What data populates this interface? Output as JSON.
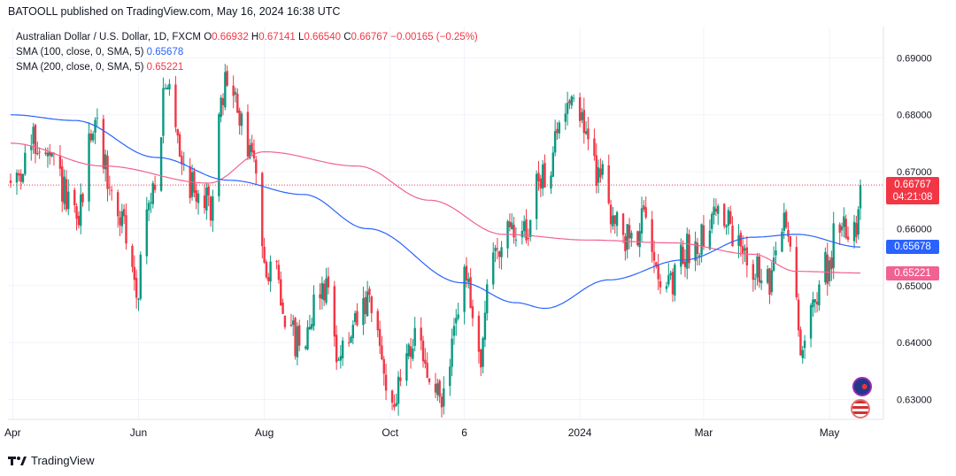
{
  "header": {
    "text": "BATOOLL published on TradingView.com, May 16, 2024 16:38 UTC"
  },
  "legend": {
    "title": "Australian Dollar / U.S. Dollar, 1D, FXCM",
    "o_label": "O",
    "o": "0.66932",
    "h_label": "H",
    "h": "0.67141",
    "l_label": "L",
    "l": "0.66540",
    "c_label": "C",
    "c": "0.66767",
    "change": "−0.00165 (−0.25%)",
    "sma100_label": "SMA (100, close, 0, SMA, 5)",
    "sma100_value": "0.65678",
    "sma200_label": "SMA (200, close, 0, SMA, 5)",
    "sma200_value": "0.65221"
  },
  "badges": {
    "price": "0.66767",
    "countdown": "04:21:08",
    "sma100": "0.65678",
    "sma200": "0.65221"
  },
  "colors": {
    "up": "#089981",
    "down": "#f23645",
    "sma100": "#2962ff",
    "sma200": "#f06292",
    "grid": "#f0f3fa"
  },
  "footer": {
    "brand": "TradingView"
  },
  "chart_data": {
    "type": "candlestick",
    "symbol": "AUDUSD",
    "interval": "1D",
    "y_ticks": [
      0.63,
      0.64,
      0.65,
      0.66,
      0.67,
      0.68,
      0.69
    ],
    "y_tick_labels": [
      "0.63000",
      "0.64000",
      "0.65000",
      "0.66000",
      "0.67000",
      "0.68000",
      "0.69000"
    ],
    "ylim": [
      0.6265,
      0.6955
    ],
    "x_tick_labels": [
      "Apr",
      "Jun",
      "Aug",
      "Oct",
      "6",
      "2024",
      "Mar",
      "May"
    ],
    "x_tick_dates": [
      "2023-04-01",
      "2023-06-01",
      "2023-08-01",
      "2023-10-01",
      "2023-11-06",
      "2024-01-01",
      "2024-03-01",
      "2024-05-01"
    ],
    "date_range": [
      "2023-03-31",
      "2024-05-16"
    ],
    "last_price": 0.66767,
    "price_anchors": [
      {
        "date": "2023-03-31",
        "price": 0.668
      },
      {
        "date": "2023-04-12",
        "price": 0.675
      },
      {
        "date": "2023-04-20",
        "price": 0.671
      },
      {
        "date": "2023-05-02",
        "price": 0.661
      },
      {
        "date": "2023-05-10",
        "price": 0.678
      },
      {
        "date": "2023-05-23",
        "price": 0.662
      },
      {
        "date": "2023-05-31",
        "price": 0.65
      },
      {
        "date": "2023-06-06",
        "price": 0.664
      },
      {
        "date": "2023-06-15",
        "price": 0.684
      },
      {
        "date": "2023-06-26",
        "price": 0.668
      },
      {
        "date": "2023-07-05",
        "price": 0.664
      },
      {
        "date": "2023-07-14",
        "price": 0.686
      },
      {
        "date": "2023-07-24",
        "price": 0.675
      },
      {
        "date": "2023-08-03",
        "price": 0.654
      },
      {
        "date": "2023-08-17",
        "price": 0.64
      },
      {
        "date": "2023-08-30",
        "price": 0.65
      },
      {
        "date": "2023-09-07",
        "price": 0.638
      },
      {
        "date": "2023-09-20",
        "price": 0.646
      },
      {
        "date": "2023-10-03",
        "price": 0.63
      },
      {
        "date": "2023-10-11",
        "price": 0.64
      },
      {
        "date": "2023-10-26",
        "price": 0.63
      },
      {
        "date": "2023-11-06",
        "price": 0.651
      },
      {
        "date": "2023-11-13",
        "price": 0.638
      },
      {
        "date": "2023-11-21",
        "price": 0.657
      },
      {
        "date": "2023-12-05",
        "price": 0.66
      },
      {
        "date": "2023-12-15",
        "price": 0.67
      },
      {
        "date": "2023-12-28",
        "price": 0.684
      },
      {
        "date": "2024-01-10",
        "price": 0.67
      },
      {
        "date": "2024-01-22",
        "price": 0.658
      },
      {
        "date": "2024-02-02",
        "price": 0.661
      },
      {
        "date": "2024-02-13",
        "price": 0.649
      },
      {
        "date": "2024-02-22",
        "price": 0.656
      },
      {
        "date": "2024-03-08",
        "price": 0.663
      },
      {
        "date": "2024-03-20",
        "price": 0.656
      },
      {
        "date": "2024-04-02",
        "price": 0.65
      },
      {
        "date": "2024-04-09",
        "price": 0.662
      },
      {
        "date": "2024-04-18",
        "price": 0.64
      },
      {
        "date": "2024-04-29",
        "price": 0.653
      },
      {
        "date": "2024-05-06",
        "price": 0.661
      },
      {
        "date": "2024-05-14",
        "price": 0.661
      },
      {
        "date": "2024-05-16",
        "price": 0.66767
      }
    ],
    "sma100_anchors": [
      {
        "date": "2023-03-31",
        "price": 0.68
      },
      {
        "date": "2023-05-01",
        "price": 0.679
      },
      {
        "date": "2023-06-10",
        "price": 0.6725
      },
      {
        "date": "2023-07-15",
        "price": 0.6685
      },
      {
        "date": "2023-08-20",
        "price": 0.666
      },
      {
        "date": "2023-09-20",
        "price": 0.66
      },
      {
        "date": "2023-11-05",
        "price": 0.6505
      },
      {
        "date": "2023-12-01",
        "price": 0.647
      },
      {
        "date": "2023-12-15",
        "price": 0.646
      },
      {
        "date": "2024-01-15",
        "price": 0.651
      },
      {
        "date": "2024-02-20",
        "price": 0.6545
      },
      {
        "date": "2024-03-25",
        "price": 0.6585
      },
      {
        "date": "2024-04-15",
        "price": 0.659
      },
      {
        "date": "2024-05-16",
        "price": 0.65678
      }
    ],
    "sma200_anchors": [
      {
        "date": "2023-03-31",
        "price": 0.675
      },
      {
        "date": "2023-05-15",
        "price": 0.671
      },
      {
        "date": "2023-07-05",
        "price": 0.668
      },
      {
        "date": "2023-08-01",
        "price": 0.6735
      },
      {
        "date": "2023-09-15",
        "price": 0.671
      },
      {
        "date": "2023-10-20",
        "price": 0.665
      },
      {
        "date": "2023-11-25",
        "price": 0.659
      },
      {
        "date": "2024-01-05",
        "price": 0.658
      },
      {
        "date": "2024-02-15",
        "price": 0.6575
      },
      {
        "date": "2024-03-25",
        "price": 0.6555
      },
      {
        "date": "2024-04-15",
        "price": 0.6525
      },
      {
        "date": "2024-05-16",
        "price": 0.65221
      }
    ]
  }
}
